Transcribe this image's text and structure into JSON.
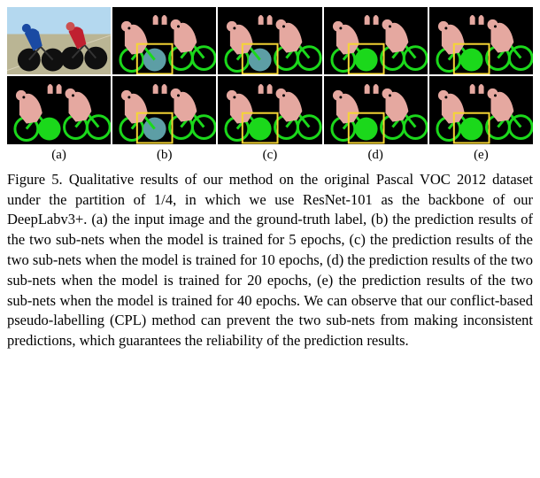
{
  "figure": {
    "columns": [
      "(a)",
      "(b)",
      "(c)",
      "(d)",
      "(e)"
    ],
    "colors": {
      "black": "#000000",
      "person_pink": "#e5a8a0",
      "bike_green": "#1bd81b",
      "wheel_teal": "#5d9ea5",
      "box_yellow": "#f5d534",
      "sky": "#b4d8ef",
      "ground": "#bab594",
      "rider_blue": "#1a4aa3",
      "rider_red": "#c02030",
      "wheel_black": "#101010"
    },
    "box_stroke_width": 2,
    "tiles": [
      {
        "row": 0,
        "col": 0,
        "kind": "photo"
      },
      {
        "row": 0,
        "col": 1,
        "kind": "seg",
        "has_box": true,
        "wheel": "teal"
      },
      {
        "row": 0,
        "col": 2,
        "kind": "seg",
        "has_box": true,
        "wheel": "teal"
      },
      {
        "row": 0,
        "col": 3,
        "kind": "seg",
        "has_box": true,
        "wheel": "green"
      },
      {
        "row": 0,
        "col": 4,
        "kind": "seg",
        "has_box": true,
        "wheel": "green"
      },
      {
        "row": 1,
        "col": 0,
        "kind": "gt",
        "has_box": false
      },
      {
        "row": 1,
        "col": 1,
        "kind": "seg",
        "has_box": true,
        "wheel": "teal"
      },
      {
        "row": 1,
        "col": 2,
        "kind": "seg",
        "has_box": true,
        "wheel": "green"
      },
      {
        "row": 1,
        "col": 3,
        "kind": "seg",
        "has_box": true,
        "wheel": "green"
      },
      {
        "row": 1,
        "col": 4,
        "kind": "seg",
        "has_box": true,
        "wheel": "green"
      }
    ]
  },
  "caption": "Figure 5. Qualitative results of our method on the original Pascal VOC 2012 dataset under the partition of 1/4, in which we use ResNet-101 as the backbone of our DeepLabv3+. (a) the input image and the ground-truth label, (b) the prediction results of the two sub-nets when the model is trained for 5 epochs, (c) the prediction results of the two sub-nets when the model is trained for 10 epochs, (d) the prediction results of the two sub-nets when the model is trained for 20 epochs, (e) the prediction results of the two sub-nets when the model is trained for 40 epochs. We can observe that our conflict-based pseudo-labelling (CPL) method can prevent the two sub-nets from making inconsistent predictions, which guarantees the reliability of the prediction results."
}
